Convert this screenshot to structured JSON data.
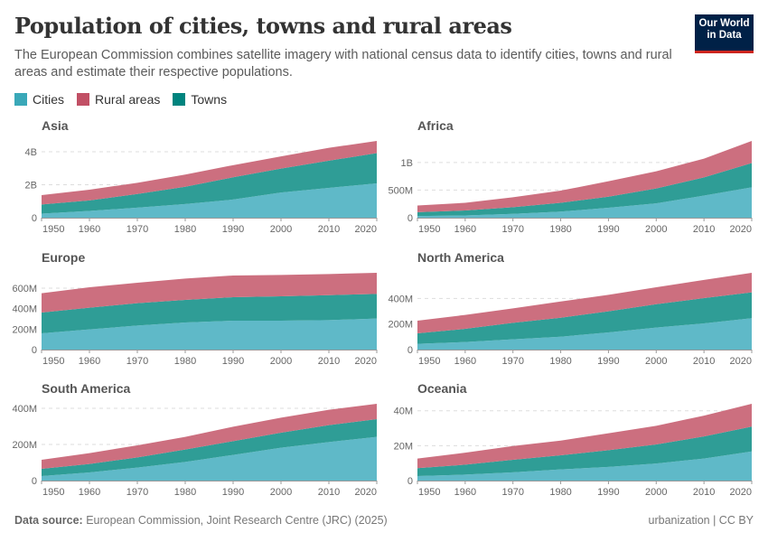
{
  "header": {
    "title": "Population of cities, towns and rural areas",
    "subtitle": "The European Commission combines satellite imagery with national census data to identify cities, towns and rural areas and estimate their respective populations.",
    "logo_text": "Our World in Data"
  },
  "legend": [
    {
      "label": "Cities",
      "color": "#3aa8b8"
    },
    {
      "label": "Rural areas",
      "color": "#c15065"
    },
    {
      "label": "Towns",
      "color": "#00847e"
    }
  ],
  "footer": {
    "source_label": "Data source:",
    "source_text": "European Commission, Joint Research Centre (JRC) (2025)",
    "right_text": "urbanization | CC BY"
  },
  "chart_data": {
    "type": "area",
    "stacked": true,
    "x": [
      1950,
      1960,
      1970,
      1980,
      1990,
      2000,
      2010,
      2020
    ],
    "xticks": [
      "1950",
      "1960",
      "1970",
      "1980",
      "1990",
      "2000",
      "2010",
      "2020"
    ],
    "series_order": [
      "Cities",
      "Towns",
      "Rural areas"
    ],
    "colors": {
      "Cities": "#5fb9c8",
      "Towns": "#2f9d96",
      "Rural areas": "#cc6f7f"
    },
    "grid": "horizontal-dashed",
    "panels": [
      {
        "title": "Asia",
        "yticks": [
          {
            "v": 0,
            "label": "0"
          },
          {
            "v": 2000,
            "label": "2B"
          },
          {
            "v": 4000,
            "label": "4B"
          }
        ],
        "series": [
          {
            "name": "Cities",
            "values": [
              250,
              410,
              610,
              830,
              1100,
              1530,
              1810,
              2080
            ]
          },
          {
            "name": "Towns",
            "values": [
              550,
              640,
              830,
              1050,
              1350,
              1450,
              1650,
              1840
            ]
          },
          {
            "name": "Rural areas",
            "values": [
              570,
              650,
              680,
              740,
              740,
              740,
              780,
              740
            ]
          }
        ]
      },
      {
        "title": "Africa",
        "yticks": [
          {
            "v": 0,
            "label": "0"
          },
          {
            "v": 500,
            "label": "500M"
          },
          {
            "v": 1000,
            "label": "1B"
          }
        ],
        "series": [
          {
            "name": "Cities",
            "values": [
              30,
              40,
              70,
              110,
              180,
              260,
              400,
              550
            ]
          },
          {
            "name": "Towns",
            "values": [
              70,
              90,
              120,
              160,
              200,
              270,
              330,
              440
            ]
          },
          {
            "name": "Rural areas",
            "values": [
              120,
              140,
              180,
              220,
              280,
              310,
              340,
              400
            ]
          }
        ]
      },
      {
        "title": "Europe",
        "yticks": [
          {
            "v": 0,
            "label": "0"
          },
          {
            "v": 200,
            "label": "200M"
          },
          {
            "v": 400,
            "label": "400M"
          },
          {
            "v": 600,
            "label": "600M"
          }
        ],
        "series": [
          {
            "name": "Cities",
            "values": [
              159,
              197,
              235,
              265,
              282,
              282,
              288,
              303
            ]
          },
          {
            "name": "Towns",
            "values": [
              203,
              212,
              218,
              220,
              230,
              239,
              244,
              241
            ]
          },
          {
            "name": "Rural areas",
            "values": [
              188,
              200,
              200,
              209,
              212,
              208,
              206,
              206
            ]
          }
        ]
      },
      {
        "title": "North America",
        "yticks": [
          {
            "v": 0,
            "label": "0"
          },
          {
            "v": 200,
            "label": "200M"
          },
          {
            "v": 400,
            "label": "400M"
          }
        ],
        "series": [
          {
            "name": "Cities",
            "values": [
              45,
              59,
              80,
              101,
              134,
              172,
              205,
              245
            ]
          },
          {
            "name": "Towns",
            "values": [
              82,
              103,
              129,
              148,
              165,
              183,
              197,
              202
            ]
          },
          {
            "name": "Rural areas",
            "values": [
              99,
              109,
              113,
              127,
              129,
              132,
              142,
              153
            ]
          }
        ]
      },
      {
        "title": "South America",
        "yticks": [
          {
            "v": 0,
            "label": "0"
          },
          {
            "v": 200,
            "label": "200M"
          },
          {
            "v": 400,
            "label": "400M"
          }
        ],
        "series": [
          {
            "name": "Cities",
            "values": [
              25,
              45,
              72,
              103,
              142,
              182,
              213,
              242
            ]
          },
          {
            "name": "Towns",
            "values": [
              40,
              47,
              56,
              69,
              76,
              83,
              94,
              98
            ]
          },
          {
            "name": "Rural areas",
            "values": [
              50,
              60,
              67,
              70,
              80,
              83,
              85,
              85
            ]
          }
        ]
      },
      {
        "title": "Oceania",
        "yticks": [
          {
            "v": 0,
            "label": "0"
          },
          {
            "v": 20,
            "label": "20M"
          },
          {
            "v": 40,
            "label": "40M"
          }
        ],
        "series": [
          {
            "name": "Cities",
            "values": [
              2.6,
              3.4,
              4.7,
              6.4,
              7.8,
              9.8,
              12.6,
              16.7
            ]
          },
          {
            "name": "Towns",
            "values": [
              4.5,
              5.7,
              7.2,
              8.1,
              9.6,
              10.9,
              12.7,
              14.2
            ]
          },
          {
            "name": "Rural areas",
            "values": [
              5.5,
              6.9,
              7.9,
              8.4,
              9.7,
              10.7,
              11.9,
              13.1
            ]
          }
        ]
      }
    ]
  }
}
